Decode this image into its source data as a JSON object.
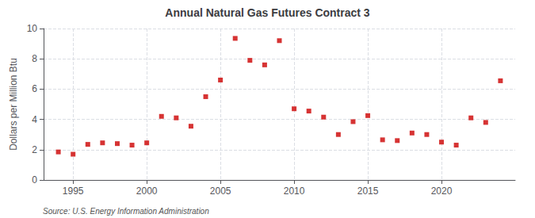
{
  "chart_data": {
    "type": "scatter",
    "title": "Annual Natural Gas Futures Contract 3",
    "ylabel": "Dollars per Million Btu",
    "annotations": [
      "Source: U.S. Energy Information Administration"
    ],
    "x": [
      1994,
      1995,
      1996,
      1997,
      1998,
      1999,
      2000,
      2001,
      2002,
      2003,
      2004,
      2005,
      2006,
      2007,
      2008,
      2009,
      2010,
      2011,
      2012,
      2013,
      2014,
      2015,
      2016,
      2017,
      2018,
      2019,
      2020,
      2021,
      2022,
      2023,
      2024
    ],
    "values": [
      1.85,
      1.7,
      2.35,
      2.45,
      2.4,
      2.3,
      2.45,
      4.2,
      4.1,
      3.55,
      5.5,
      6.6,
      9.35,
      7.9,
      7.6,
      9.2,
      4.7,
      4.55,
      4.15,
      3.0,
      3.85,
      4.25,
      2.65,
      2.6,
      3.1,
      3.0,
      2.5,
      2.3,
      4.1,
      3.8,
      6.55
    ],
    "color": "#cc0000",
    "marker": "square",
    "xlim": [
      1993,
      2025
    ],
    "xticks": [
      1995,
      2000,
      2005,
      2010,
      2015,
      2020
    ],
    "ylim": [
      0,
      10
    ],
    "yticks": [
      0,
      2,
      4,
      6,
      8,
      10
    ],
    "grid": true
  }
}
